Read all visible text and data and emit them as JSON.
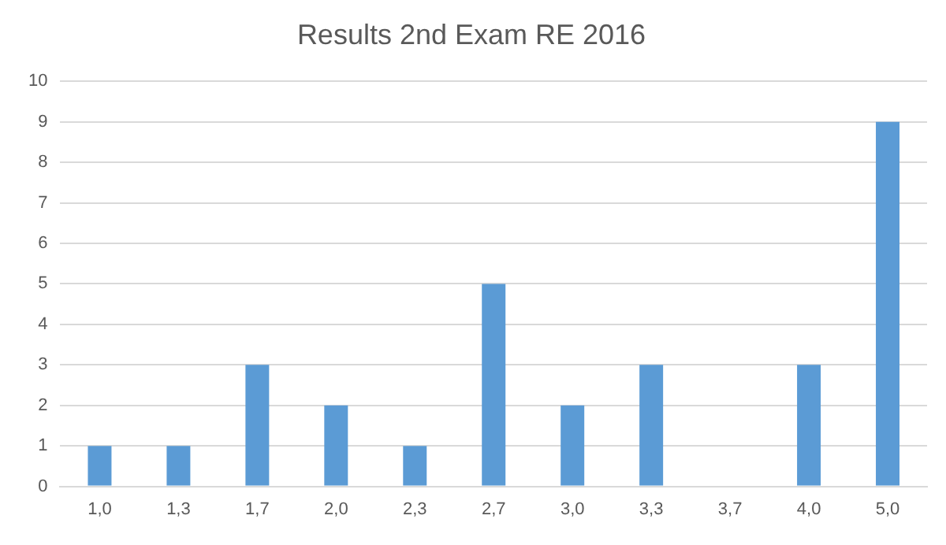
{
  "chart_data": {
    "type": "bar",
    "title": "Results 2nd Exam RE 2016",
    "categories": [
      "1,0",
      "1,3",
      "1,7",
      "2,0",
      "2,3",
      "2,7",
      "3,0",
      "3,3",
      "3,7",
      "4,0",
      "5,0"
    ],
    "values": [
      1,
      1,
      3,
      2,
      1,
      5,
      2,
      3,
      0,
      3,
      9
    ],
    "color": "#5b9bd5",
    "ylim": [
      0,
      10
    ],
    "yticks": [
      0,
      1,
      2,
      3,
      4,
      5,
      6,
      7,
      8,
      9,
      10
    ],
    "grid": "y",
    "legend": false
  }
}
